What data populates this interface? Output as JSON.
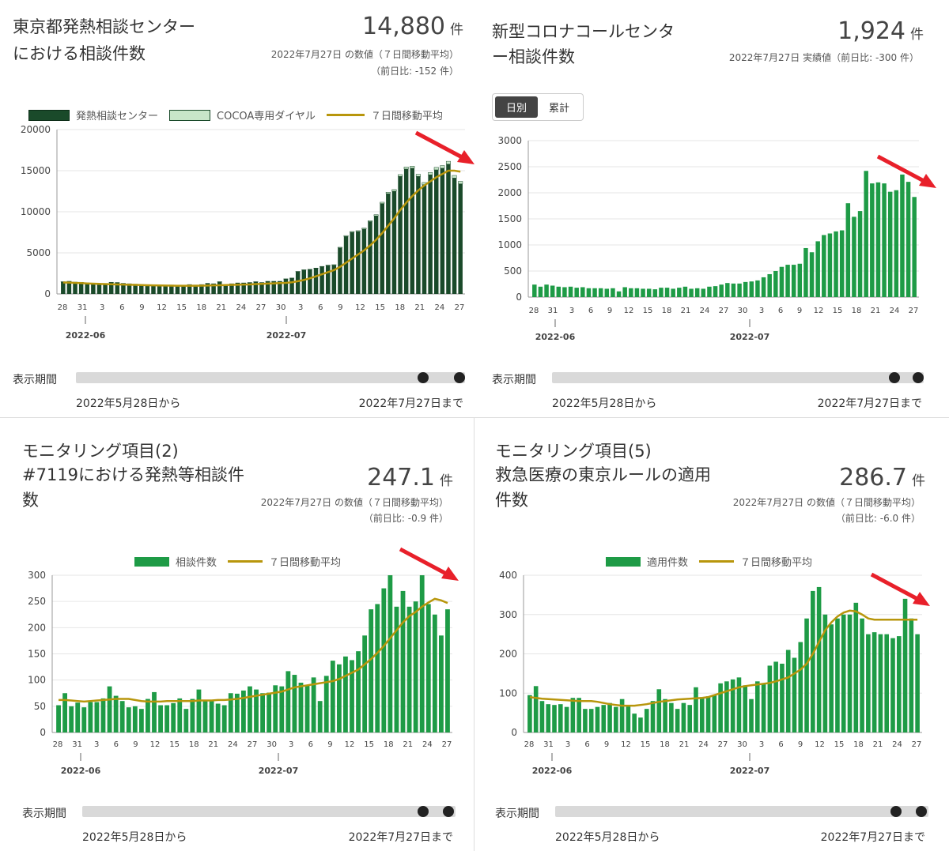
{
  "range_label": "表示期間",
  "range_from": "2022年5月28日から",
  "range_to": "2022年7月27日まで",
  "unit": "件",
  "panels": [
    {
      "title_1": "東京都発熱相談センター",
      "title_2": "における相談件数",
      "value": "14,880",
      "note_1": "2022年7月27日 の数値（７日間移動平均）",
      "note_2": "（前日比: -152 件）",
      "legend": [
        "発熱相談センター",
        "COCOA専用ダイヤル",
        "７日間移動平均"
      ]
    },
    {
      "title_1": "新型コロナコールセンタ",
      "title_2": "ー相談件数",
      "value": "1,924",
      "note_1": "2022年7月27日 実績値（前日比: -300 件）",
      "toggle": [
        "日別",
        "累計"
      ]
    },
    {
      "title_0": "モニタリング項目(2)",
      "title_1": "#7119における発熱等相談件",
      "title_2": "数",
      "value": "247.1",
      "note_1": "2022年7月27日 の数値（７日間移動平均）",
      "note_2": "（前日比: -0.9 件）",
      "legend": [
        "相談件数",
        "７日間移動平均"
      ]
    },
    {
      "title_0": "モニタリング項目(5)",
      "title_1": "救急医療の東京ルールの適用",
      "title_2": "件数",
      "value": "286.7",
      "note_1": "2022年7月27日 の数値（７日間移動平均）",
      "note_2": "（前日比: -6.0 件）",
      "legend": [
        "適用件数",
        "７日間移動平均"
      ]
    }
  ],
  "chart_data": [
    {
      "type": "bar",
      "x_tick_labels": [
        "28",
        "31",
        "3",
        "6",
        "9",
        "12",
        "15",
        "18",
        "21",
        "24",
        "27",
        "30",
        "3",
        "6",
        "9",
        "12",
        "15",
        "18",
        "21",
        "24",
        "27"
      ],
      "month_labels": [
        "2022-06",
        "2022-07"
      ],
      "ylim": [
        0,
        20000
      ],
      "yticks": [
        0,
        5000,
        10000,
        15000,
        20000
      ],
      "series": [
        {
          "name": "発熱相談センター",
          "values": [
            1450,
            1500,
            1400,
            1380,
            1300,
            1200,
            1100,
            1150,
            1380,
            1350,
            1250,
            1200,
            1150,
            1100,
            1050,
            1000,
            980,
            1000,
            1050,
            950,
            1000,
            1100,
            1050,
            1100,
            1250,
            1200,
            1450,
            1100,
            1200,
            1300,
            1300,
            1350,
            1450,
            1350,
            1500,
            1500,
            1500,
            1800,
            1900,
            2700,
            2900,
            2950,
            3100,
            3300,
            3450,
            3500,
            5600,
            7000,
            7500,
            7600,
            7900,
            8800,
            9500,
            11000,
            12200,
            12500,
            14300,
            15200,
            15300,
            14300,
            13300,
            14500,
            15100,
            15300,
            15800,
            14100,
            13400
          ]
        },
        {
          "name": "COCOA専用ダイヤル",
          "values": [
            40,
            40,
            40,
            40,
            40,
            40,
            40,
            40,
            40,
            40,
            40,
            40,
            40,
            40,
            40,
            40,
            40,
            40,
            40,
            40,
            40,
            40,
            40,
            40,
            40,
            40,
            40,
            40,
            40,
            40,
            40,
            40,
            40,
            40,
            40,
            40,
            40,
            40,
            40,
            40,
            40,
            50,
            50,
            50,
            60,
            60,
            80,
            100,
            100,
            100,
            110,
            120,
            140,
            160,
            180,
            200,
            220,
            240,
            250,
            260,
            260,
            280,
            300,
            320,
            340,
            320,
            300
          ]
        },
        {
          "name": "７日間移動平均",
          "values": [
            1400,
            1380,
            1350,
            1320,
            1280,
            1250,
            1220,
            1200,
            1180,
            1160,
            1140,
            1120,
            1100,
            1080,
            1060,
            1040,
            1030,
            1020,
            1010,
            1000,
            1000,
            1000,
            1000,
            1010,
            1020,
            1040,
            1060,
            1080,
            1100,
            1120,
            1140,
            1160,
            1200,
            1230,
            1260,
            1290,
            1320,
            1350,
            1420,
            1550,
            1700,
            1900,
            2150,
            2400,
            2650,
            2900,
            3300,
            3800,
            4300,
            4800,
            5300,
            5900,
            6600,
            7400,
            8300,
            9200,
            10200,
            11100,
            11900,
            12600,
            13200,
            13700,
            14200,
            14600,
            15000,
            15000,
            14880
          ]
        }
      ]
    },
    {
      "type": "bar",
      "x_tick_labels": [
        "28",
        "31",
        "3",
        "6",
        "9",
        "12",
        "15",
        "18",
        "21",
        "24",
        "27",
        "30",
        "3",
        "6",
        "9",
        "12",
        "15",
        "18",
        "21",
        "24",
        "27"
      ],
      "month_labels": [
        "2022-06",
        "2022-07"
      ],
      "ylim": [
        0,
        3000
      ],
      "yticks": [
        0,
        500,
        1000,
        1500,
        2000,
        2500,
        3000
      ],
      "series": [
        {
          "name": "日別",
          "values": [
            240,
            200,
            240,
            220,
            200,
            190,
            200,
            180,
            190,
            170,
            170,
            170,
            160,
            170,
            110,
            190,
            170,
            170,
            160,
            160,
            150,
            180,
            180,
            160,
            180,
            200,
            160,
            170,
            160,
            200,
            210,
            240,
            270,
            260,
            260,
            290,
            300,
            320,
            380,
            440,
            500,
            580,
            620,
            620,
            640,
            940,
            860,
            1070,
            1190,
            1220,
            1260,
            1280,
            1800,
            1540,
            1650,
            2420,
            2180,
            2200,
            2180,
            2020,
            2050,
            2350,
            2210,
            1920
          ]
        }
      ]
    },
    {
      "type": "bar",
      "x_tick_labels": [
        "28",
        "31",
        "3",
        "6",
        "9",
        "12",
        "15",
        "18",
        "21",
        "24",
        "27",
        "30",
        "3",
        "6",
        "9",
        "12",
        "15",
        "18",
        "21",
        "24",
        "27"
      ],
      "month_labels": [
        "2022-06",
        "2022-07"
      ],
      "ylim": [
        0,
        300
      ],
      "yticks": [
        0,
        50,
        100,
        150,
        200,
        250,
        300
      ],
      "series": [
        {
          "name": "相談件数",
          "values": [
            52,
            75,
            50,
            57,
            48,
            58,
            58,
            65,
            88,
            70,
            60,
            48,
            50,
            45,
            64,
            77,
            52,
            52,
            56,
            65,
            45,
            64,
            82,
            60,
            60,
            55,
            52,
            75,
            74,
            80,
            88,
            82,
            75,
            76,
            90,
            88,
            117,
            110,
            95,
            90,
            105,
            60,
            108,
            137,
            130,
            145,
            138,
            155,
            185,
            235,
            245,
            275,
            300,
            240,
            270,
            240,
            250,
            300,
            245,
            225,
            185,
            235
          ]
        },
        {
          "name": "７日間移動平均",
          "values": [
            62,
            62,
            61,
            60,
            59,
            60,
            61,
            62,
            63,
            64,
            64,
            64,
            62,
            60,
            59,
            59,
            59,
            60,
            60,
            60,
            60,
            60,
            61,
            61,
            61,
            62,
            62,
            63,
            64,
            66,
            68,
            70,
            72,
            74,
            76,
            78,
            82,
            86,
            88,
            90,
            92,
            94,
            96,
            98,
            102,
            108,
            114,
            120,
            130,
            140,
            152,
            165,
            180,
            195,
            210,
            222,
            230,
            240,
            248,
            255,
            252,
            247
          ]
        }
      ]
    },
    {
      "type": "bar",
      "x_tick_labels": [
        "28",
        "31",
        "3",
        "6",
        "9",
        "12",
        "15",
        "18",
        "21",
        "24",
        "27",
        "30",
        "3",
        "6",
        "9",
        "12",
        "15",
        "18",
        "21",
        "24",
        "27"
      ],
      "month_labels": [
        "2022-06",
        "2022-07"
      ],
      "ylim": [
        0,
        400
      ],
      "yticks": [
        0,
        100,
        200,
        300,
        400
      ],
      "series": [
        {
          "name": "適用件数",
          "values": [
            95,
            118,
            80,
            72,
            70,
            72,
            65,
            88,
            88,
            60,
            60,
            65,
            70,
            75,
            65,
            85,
            70,
            48,
            38,
            60,
            80,
            110,
            85,
            75,
            60,
            75,
            70,
            115,
            90,
            92,
            95,
            125,
            130,
            135,
            140,
            120,
            85,
            130,
            125,
            170,
            180,
            175,
            210,
            190,
            230,
            290,
            360,
            370,
            300,
            275,
            290,
            300,
            300,
            330,
            290,
            250,
            255,
            250,
            250,
            240,
            245,
            340,
            290,
            250
          ]
        },
        {
          "name": "７日間移動平均",
          "values": [
            90,
            88,
            86,
            85,
            84,
            83,
            82,
            81,
            80,
            80,
            80,
            78,
            75,
            72,
            70,
            68,
            68,
            68,
            70,
            72,
            75,
            78,
            80,
            82,
            84,
            85,
            86,
            87,
            88,
            90,
            95,
            100,
            105,
            110,
            115,
            118,
            120,
            122,
            124,
            126,
            130,
            135,
            140,
            150,
            160,
            175,
            200,
            230,
            260,
            280,
            295,
            305,
            310,
            308,
            300,
            290,
            287,
            287,
            287,
            287,
            287,
            287,
            287,
            287
          ]
        }
      ]
    }
  ]
}
